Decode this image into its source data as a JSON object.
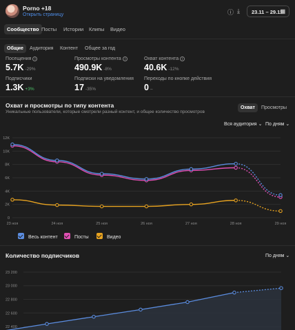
{
  "header": {
    "account_name": "Porno +18",
    "account_link": "Открыть страницу",
    "date_range": "23.11 – 29.11",
    "icons": [
      "help-icon",
      "download-icon",
      "calendar-icon",
      "chevron-down-icon"
    ]
  },
  "main_tabs": [
    {
      "label": "Сообщество",
      "active": true
    },
    {
      "label": "Посты",
      "active": false
    },
    {
      "label": "Истории",
      "active": false
    },
    {
      "label": "Клипы",
      "active": false
    },
    {
      "label": "Видео",
      "active": false
    }
  ],
  "sub_tabs": [
    {
      "label": "Общие",
      "active": true
    },
    {
      "label": "Аудитория",
      "active": false
    },
    {
      "label": "Контент",
      "active": false
    },
    {
      "label": "Общее за год",
      "active": false
    }
  ],
  "metrics": [
    {
      "label": "Посещения",
      "value": "5.7K",
      "delta": "-29%",
      "delta_positive": false,
      "info": true
    },
    {
      "label": "Просмотры контента",
      "value": "490.9K",
      "delta": "-8%",
      "delta_positive": false,
      "info": true
    },
    {
      "label": "Охват контента",
      "value": "40.6K",
      "delta": "-12%",
      "delta_positive": false,
      "info": true
    },
    {
      "label": "Подписчики",
      "value": "1.3K",
      "delta": "+3%",
      "delta_positive": true,
      "info": false
    },
    {
      "label": "Подписки на уведомления",
      "value": "17",
      "delta": "-35%",
      "delta_positive": false,
      "info": false
    },
    {
      "label": "Переходы по кнопке действия",
      "value": "0",
      "delta": "–",
      "delta_positive": false,
      "info": false
    }
  ],
  "reach_section": {
    "title": "Охват и просмотры по типу контента",
    "subtitle": "Уникальные пользователи, которые смотрели разный контент, и общее количество просмотров",
    "toggle": [
      {
        "label": "Охват",
        "active": true
      },
      {
        "label": "Просмотры",
        "active": false
      }
    ],
    "audience_filter": "Вся аудитория",
    "period_filter": "По дням"
  },
  "subscribers_section": {
    "title": "Количество подписчиков",
    "period_filter": "По дням"
  },
  "colors": {
    "all": "#5b8de0",
    "posts": "#e04fb3",
    "video": "#e8a320",
    "area": "#2b323d"
  },
  "chart_data": [
    {
      "type": "line",
      "x": [
        "23 ноя",
        "24 ноя",
        "25 ноя",
        "26 ноя",
        "27 ноя",
        "28 ноя",
        "29 ноя"
      ],
      "ylim": [
        0,
        12000
      ],
      "yticks": [
        "0",
        "2K",
        "4K",
        "6K",
        "8K",
        "10K",
        "12K"
      ],
      "ytick_values": [
        0,
        2000,
        4000,
        6000,
        8000,
        10000,
        12000
      ],
      "dashed_from_index": 5,
      "grid": true,
      "legend": "bottom",
      "series": [
        {
          "name": "Весь контент",
          "key": "all",
          "values": [
            11000,
            8600,
            6600,
            5800,
            7300,
            8100,
            3400
          ]
        },
        {
          "name": "Посты",
          "key": "posts",
          "values": [
            10800,
            8400,
            6400,
            5600,
            7100,
            7500,
            3100
          ]
        },
        {
          "name": "Видео",
          "key": "video",
          "values": [
            2700,
            1900,
            1700,
            1700,
            2000,
            2600,
            1000
          ]
        }
      ]
    },
    {
      "type": "area",
      "x": [
        "23 ноя",
        "24 ноя",
        "25 ноя",
        "26 ноя",
        "27 ноя",
        "28 ноя",
        "29 ноя"
      ],
      "yticks": [
        "22 400",
        "22 600",
        "22 800",
        "23 000",
        "23 200"
      ],
      "ytick_values": [
        22400,
        22600,
        22800,
        23000,
        23200
      ],
      "ylim": [
        22400,
        23200
      ],
      "dashed_from_index": 5,
      "series": [
        {
          "name": "",
          "values": [
            22330,
            22440,
            22545,
            22650,
            22760,
            22900,
            22965
          ]
        }
      ]
    }
  ]
}
